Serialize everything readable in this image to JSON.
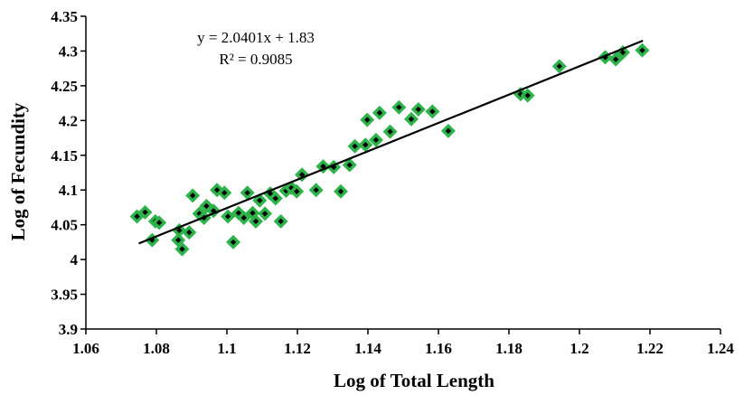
{
  "chart_data": {
    "type": "scatter",
    "xlabel": "Log of Total Length",
    "ylabel": "Log of Fecundity",
    "xlim": [
      1.06,
      1.24
    ],
    "ylim": [
      3.9,
      4.35
    ],
    "x_ticks": [
      "1.06",
      "1.08",
      "1.1",
      "1.12",
      "1.14",
      "1.16",
      "1.18",
      "1.2",
      "1.22",
      "1.24"
    ],
    "y_ticks": [
      "3.9",
      "3.95",
      "4",
      "4.05",
      "4.1",
      "4.15",
      "4.2",
      "4.25",
      "4.3",
      "4.35"
    ],
    "grid": false,
    "legend": "none",
    "marker_fill": "#2db34a",
    "marker_core": "#000000",
    "trendline": {
      "slope": 2.0401,
      "intercept": 1.83,
      "x_range": [
        1.075,
        1.218
      ],
      "equation": "y = 2.0401x + 1.83",
      "r_squared": "R² = 0.9085",
      "color": "#000000"
    },
    "points": [
      {
        "x": 1.0745,
        "y": 4.062
      },
      {
        "x": 1.0768,
        "y": 4.068
      },
      {
        "x": 1.0788,
        "y": 4.028
      },
      {
        "x": 1.0797,
        "y": 4.055
      },
      {
        "x": 1.0808,
        "y": 4.053
      },
      {
        "x": 1.0862,
        "y": 4.028
      },
      {
        "x": 1.0865,
        "y": 4.042
      },
      {
        "x": 1.0873,
        "y": 4.015
      },
      {
        "x": 1.0893,
        "y": 4.039
      },
      {
        "x": 1.0903,
        "y": 4.092
      },
      {
        "x": 1.0922,
        "y": 4.066
      },
      {
        "x": 1.0935,
        "y": 4.06
      },
      {
        "x": 1.0942,
        "y": 4.077
      },
      {
        "x": 1.0962,
        "y": 4.07
      },
      {
        "x": 1.0972,
        "y": 4.1
      },
      {
        "x": 1.0993,
        "y": 4.096
      },
      {
        "x": 1.1003,
        "y": 4.062
      },
      {
        "x": 1.1018,
        "y": 4.025
      },
      {
        "x": 1.1033,
        "y": 4.067
      },
      {
        "x": 1.1048,
        "y": 4.06
      },
      {
        "x": 1.1058,
        "y": 4.096
      },
      {
        "x": 1.1073,
        "y": 4.067
      },
      {
        "x": 1.1082,
        "y": 4.055
      },
      {
        "x": 1.1093,
        "y": 4.085
      },
      {
        "x": 1.1108,
        "y": 4.066
      },
      {
        "x": 1.1123,
        "y": 4.095
      },
      {
        "x": 1.1138,
        "y": 4.088
      },
      {
        "x": 1.1153,
        "y": 4.055
      },
      {
        "x": 1.1168,
        "y": 4.099
      },
      {
        "x": 1.1183,
        "y": 4.103
      },
      {
        "x": 1.1198,
        "y": 4.098
      },
      {
        "x": 1.1213,
        "y": 4.122
      },
      {
        "x": 1.1253,
        "y": 4.1
      },
      {
        "x": 1.1273,
        "y": 4.134
      },
      {
        "x": 1.1303,
        "y": 4.133
      },
      {
        "x": 1.1323,
        "y": 4.098
      },
      {
        "x": 1.1348,
        "y": 4.136
      },
      {
        "x": 1.1363,
        "y": 4.163
      },
      {
        "x": 1.1393,
        "y": 4.165
      },
      {
        "x": 1.1398,
        "y": 4.201
      },
      {
        "x": 1.1423,
        "y": 4.172
      },
      {
        "x": 1.1433,
        "y": 4.211
      },
      {
        "x": 1.1463,
        "y": 4.184
      },
      {
        "x": 1.1488,
        "y": 4.219
      },
      {
        "x": 1.1523,
        "y": 4.202
      },
      {
        "x": 1.1543,
        "y": 4.216
      },
      {
        "x": 1.1583,
        "y": 4.213
      },
      {
        "x": 1.1628,
        "y": 4.185
      },
      {
        "x": 1.1833,
        "y": 4.238
      },
      {
        "x": 1.1853,
        "y": 4.236
      },
      {
        "x": 1.1943,
        "y": 4.278
      },
      {
        "x": 1.2073,
        "y": 4.291
      },
      {
        "x": 1.2103,
        "y": 4.288
      },
      {
        "x": 1.2123,
        "y": 4.298
      },
      {
        "x": 1.2178,
        "y": 4.301
      }
    ]
  }
}
